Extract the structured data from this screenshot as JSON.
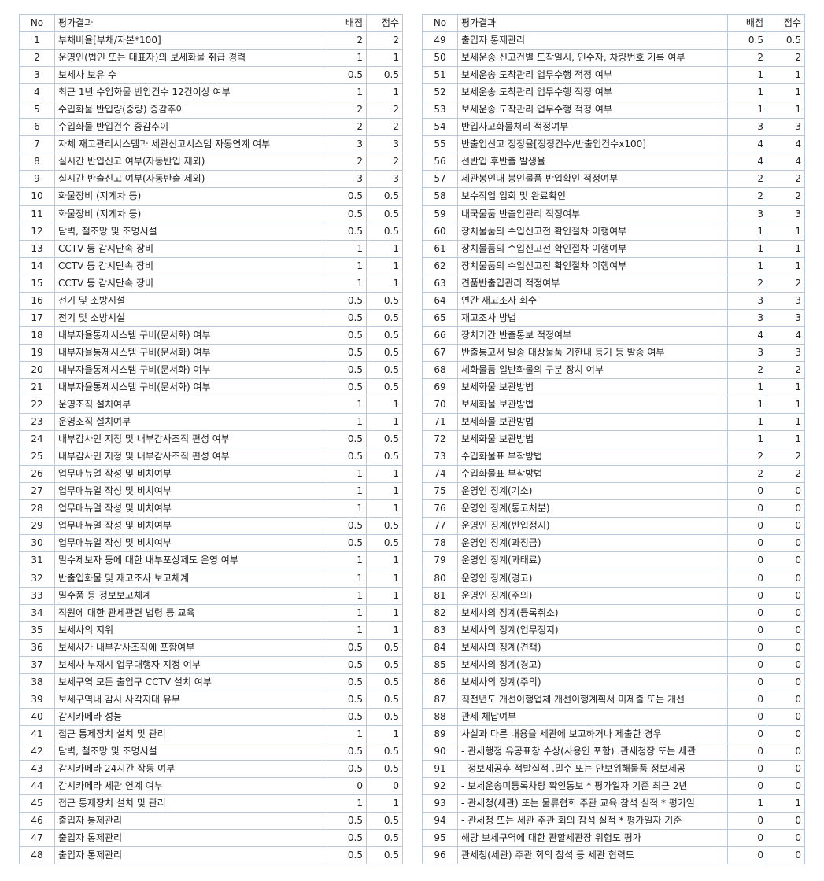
{
  "headers": {
    "no": "No",
    "desc": "평가결과",
    "allot": "배점",
    "score": "점수"
  },
  "rows": [
    [
      "1",
      "부채비율[부채/자본*100]",
      "2",
      "2"
    ],
    [
      "2",
      "운영인(법인 또는 대표자)의 보세화물 취급 경력",
      "1",
      "1"
    ],
    [
      "3",
      "보세사 보유 수",
      "0.5",
      "0.5"
    ],
    [
      "4",
      "최근 1년 수입화물 반입건수 12건이상 여부",
      "1",
      "1"
    ],
    [
      "5",
      "수입화물 반입량(중량) 증감추이",
      "2",
      "2"
    ],
    [
      "6",
      "수입화물 반입건수 증감추이",
      "2",
      "2"
    ],
    [
      "7",
      "자체 재고관리시스템과 세관신고시스템 자동연계 여부",
      "3",
      "3"
    ],
    [
      "8",
      "실시간 반입신고 여부(자동반입 제외)",
      "2",
      "2"
    ],
    [
      "9",
      "실시간 반출신고 여부(자동반출 제외)",
      "3",
      "3"
    ],
    [
      "10",
      "화물장비 (지게차 등)",
      "0.5",
      "0.5"
    ],
    [
      "11",
      "화물장비 (지게차 등)",
      "0.5",
      "0.5"
    ],
    [
      "12",
      "담벽, 철조망 및 조명시설",
      "0.5",
      "0.5"
    ],
    [
      "13",
      "CCTV 등 감시단속 장비",
      "1",
      "1"
    ],
    [
      "14",
      "CCTV 등 감시단속 장비",
      "1",
      "1"
    ],
    [
      "15",
      "CCTV 등 감시단속 장비",
      "1",
      "1"
    ],
    [
      "16",
      "전기 및 소방시설",
      "0.5",
      "0.5"
    ],
    [
      "17",
      "전기 및 소방시설",
      "0.5",
      "0.5"
    ],
    [
      "18",
      "내부자율통제시스템 구비(문서화) 여부",
      "0.5",
      "0.5"
    ],
    [
      "19",
      "내부자율통제시스템 구비(문서화) 여부",
      "0.5",
      "0.5"
    ],
    [
      "20",
      "내부자율통제시스템 구비(문서화) 여부",
      "0.5",
      "0.5"
    ],
    [
      "21",
      "내부자율통제시스템 구비(문서화) 여부",
      "0.5",
      "0.5"
    ],
    [
      "22",
      "운영조직 설치여부",
      "1",
      "1"
    ],
    [
      "23",
      "운영조직 설치여부",
      "1",
      "1"
    ],
    [
      "24",
      "내부감사인 지정 및 내부감사조직 편성 여부",
      "0.5",
      "0.5"
    ],
    [
      "25",
      "내부감사인 지정 및 내부감사조직 편성 여부",
      "0.5",
      "0.5"
    ],
    [
      "26",
      "업무매뉴얼 작성 및 비치여부",
      "1",
      "1"
    ],
    [
      "27",
      "업무매뉴얼 작성 및 비치여부",
      "1",
      "1"
    ],
    [
      "28",
      "업무매뉴얼 작성 및 비치여부",
      "1",
      "1"
    ],
    [
      "29",
      "업무매뉴얼 작성 및 비치여부",
      "0.5",
      "0.5"
    ],
    [
      "30",
      "업무매뉴얼 작성 및 비치여부",
      "0.5",
      "0.5"
    ],
    [
      "31",
      "밀수제보자 등에 대한 내부포상제도 운영 여부",
      "1",
      "1"
    ],
    [
      "32",
      "반출입화물 및 재고조사 보고체계",
      "1",
      "1"
    ],
    [
      "33",
      "밀수품 등 정보보고체계",
      "1",
      "1"
    ],
    [
      "34",
      "직원에 대한 관세관련 법령 등 교육",
      "1",
      "1"
    ],
    [
      "35",
      "보세사의 지위",
      "1",
      "1"
    ],
    [
      "36",
      "보세사가 내부감사조직에 포함여부",
      "0.5",
      "0.5"
    ],
    [
      "37",
      "보세사 부재시 업무대행자 지정 여부",
      "0.5",
      "0.5"
    ],
    [
      "38",
      "보세구역 모든 출입구 CCTV 설치 여부",
      "0.5",
      "0.5"
    ],
    [
      "39",
      "보세구역내 감시 사각지대 유무",
      "0.5",
      "0.5"
    ],
    [
      "40",
      "감시카메라 성능",
      "0.5",
      "0.5"
    ],
    [
      "41",
      "접근 통제장치 설치 및 관리",
      "1",
      "1"
    ],
    [
      "42",
      "담벽, 철조망 및 조명시설",
      "0.5",
      "0.5"
    ],
    [
      "43",
      "감시카메라 24시간 작동 여부",
      "0.5",
      "0.5"
    ],
    [
      "44",
      "감시카메라 세관 연계 여부",
      "0",
      "0"
    ],
    [
      "45",
      "접근 통제장치 설치 및 관리",
      "1",
      "1"
    ],
    [
      "46",
      "출입자 통제관리",
      "0.5",
      "0.5"
    ],
    [
      "47",
      "출입자 통제관리",
      "0.5",
      "0.5"
    ],
    [
      "48",
      "출입자 통제관리",
      "0.5",
      "0.5"
    ],
    [
      "49",
      "출입자 통제관리",
      "0.5",
      "0.5"
    ],
    [
      "50",
      "보세운송 신고건별 도착일시, 인수자, 차량번호 기록 여부",
      "2",
      "2"
    ],
    [
      "51",
      "보세운송 도착관리 업무수행 적정 여부",
      "1",
      "1"
    ],
    [
      "52",
      "보세운송 도착관리 업무수행 적정 여부",
      "1",
      "1"
    ],
    [
      "53",
      "보세운송 도착관리 업무수행 적정 여부",
      "1",
      "1"
    ],
    [
      "54",
      "반입사고화물처리 적정여부",
      "3",
      "3"
    ],
    [
      "55",
      "반출입신고 정정율[정정건수/반출입건수x100]",
      "4",
      "4"
    ],
    [
      "56",
      "선반입 후반출 발생율",
      "4",
      "4"
    ],
    [
      "57",
      "세관봉인대 봉인물품 반입확인 적정여부",
      "2",
      "2"
    ],
    [
      "58",
      "보수작업 입회 및 완료확인",
      "2",
      "2"
    ],
    [
      "59",
      "내국물품 반출입관리 적정여부",
      "3",
      "3"
    ],
    [
      "60",
      "장치물품의 수입신고전 확인절차 이행여부",
      "1",
      "1"
    ],
    [
      "61",
      "장치물품의 수입신고전 확인절차 이행여부",
      "1",
      "1"
    ],
    [
      "62",
      "장치물품의 수입신고전 확인절차 이행여부",
      "1",
      "1"
    ],
    [
      "63",
      "견품반출입관리 적정여부",
      "2",
      "2"
    ],
    [
      "64",
      "연간 재고조사 회수",
      "3",
      "3"
    ],
    [
      "65",
      "재고조사 방법",
      "3",
      "3"
    ],
    [
      "66",
      "장치기간 반출통보 적정여부",
      "4",
      "4"
    ],
    [
      "67",
      "반출통고서 발송 대상물품 기한내 등기 등 발송 여부",
      "3",
      "3"
    ],
    [
      "68",
      "체화물품 일반화물의 구분 장치 여부",
      "2",
      "2"
    ],
    [
      "69",
      "보세화물 보관방법",
      "1",
      "1"
    ],
    [
      "70",
      "보세화물 보관방법",
      "1",
      "1"
    ],
    [
      "71",
      "보세화물 보관방법",
      "1",
      "1"
    ],
    [
      "72",
      "보세화물 보관방법",
      "1",
      "1"
    ],
    [
      "73",
      "수입화물표 부착방법",
      "2",
      "2"
    ],
    [
      "74",
      "수입화물표 부착방법",
      "2",
      "2"
    ],
    [
      "75",
      "운영인 징계(기소)",
      "0",
      "0"
    ],
    [
      "76",
      "운영인 징계(통고처분)",
      "0",
      "0"
    ],
    [
      "77",
      "운영인 징계(반입정지)",
      "0",
      "0"
    ],
    [
      "78",
      "운영인 징계(과징금)",
      "0",
      "0"
    ],
    [
      "79",
      "운영인 징계(과태료)",
      "0",
      "0"
    ],
    [
      "80",
      "운영인 징계(경고)",
      "0",
      "0"
    ],
    [
      "81",
      "운영인 징계(주의)",
      "0",
      "0"
    ],
    [
      "82",
      "보세사의 징계(등록취소)",
      "0",
      "0"
    ],
    [
      "83",
      "보세사의 징계(업무정지)",
      "0",
      "0"
    ],
    [
      "84",
      "보세사의 징계(견책)",
      "0",
      "0"
    ],
    [
      "85",
      "보세사의 징계(경고)",
      "0",
      "0"
    ],
    [
      "86",
      "보세사의 징계(주의)",
      "0",
      "0"
    ],
    [
      "87",
      "직전년도 개선이행업체 개선이행계획서 미제출 또는 개선",
      "0",
      "0"
    ],
    [
      "88",
      "관세 체납여부",
      "0",
      "0"
    ],
    [
      "89",
      "사실과 다른 내용을 세관에 보고하거나 제출한 경우",
      "0",
      "0"
    ],
    [
      "90",
      "- 관세행정 유공표창 수상(사용인 포함) .관세청장 또는 세관",
      "0",
      "0"
    ],
    [
      "91",
      "- 정보제공후 적발실적 .밀수 또는 안보위해물품 정보제공",
      "0",
      "0"
    ],
    [
      "92",
      "- 보세운송미등록차량 확인통보 * 평가일자 기준 최근 2년",
      "0",
      "0"
    ],
    [
      "93",
      "- 관세청(세관) 또는 물류협회 주관 교육 참석 실적 * 평가일",
      "1",
      "1"
    ],
    [
      "94",
      "- 관세청 또는 세관 주관 회의 참석 실적 * 평가일자 기준",
      "0",
      "0"
    ],
    [
      "95",
      "해당 보세구역에 대한 관할세관장 위험도 평가",
      "0",
      "0"
    ],
    [
      "96",
      "관세청(세관) 주관 회의 참석 등 세관 협력도",
      "0",
      "0"
    ]
  ]
}
